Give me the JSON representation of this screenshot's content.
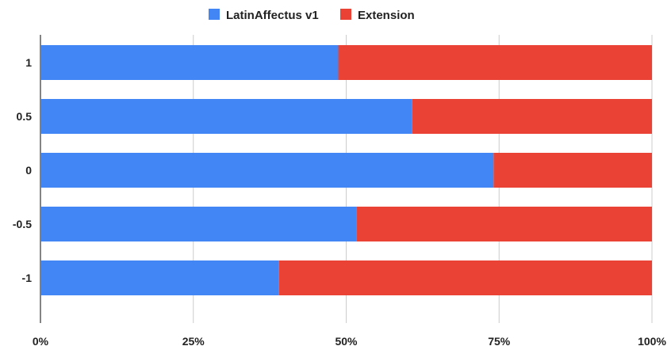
{
  "chart_data": {
    "type": "bar",
    "orientation": "horizontal",
    "stacked": "percent",
    "title": "",
    "xlabel": "",
    "ylabel": "",
    "categories": [
      "1",
      "0.5",
      "0",
      "-0.5",
      "-1"
    ],
    "series": [
      {
        "name": "LatinAffectus v1",
        "color": "#4285f4",
        "values": [
          48.7,
          60.8,
          74.1,
          51.7,
          39.0
        ]
      },
      {
        "name": "Extension",
        "color": "#ea4335",
        "values": [
          51.3,
          39.2,
          25.9,
          48.3,
          61.0
        ]
      }
    ],
    "xticks": [
      "0%",
      "25%",
      "50%",
      "75%",
      "100%"
    ],
    "xlim": [
      0,
      100
    ],
    "grid": "vertical",
    "legend": "top-center"
  }
}
